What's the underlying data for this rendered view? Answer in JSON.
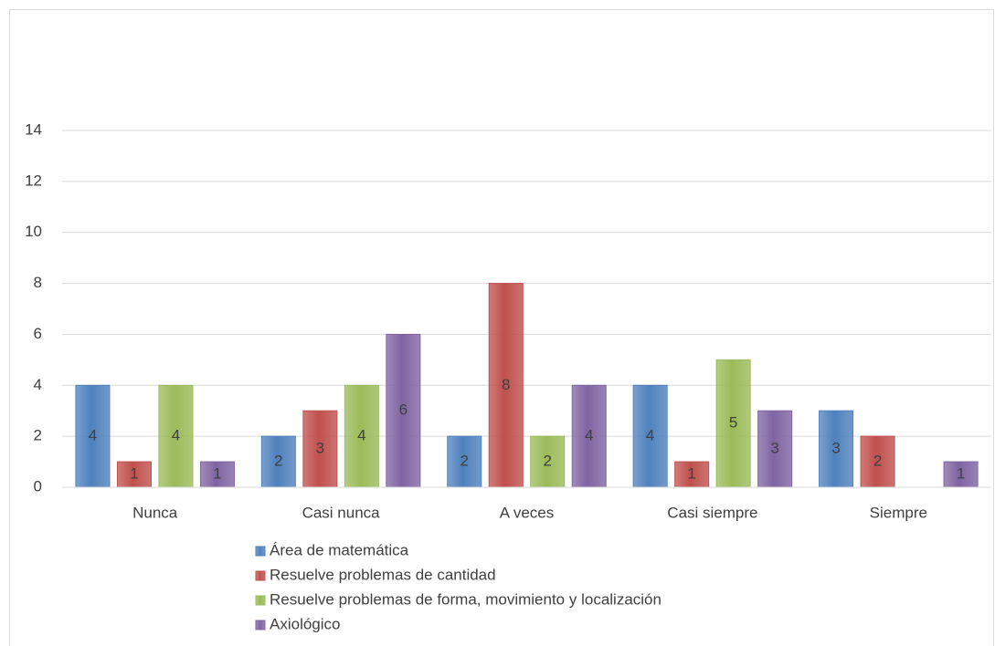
{
  "chart_data": {
    "type": "bar",
    "categories": [
      "Nunca",
      "Casi nunca",
      "A veces",
      "Casi siempre",
      "Siempre"
    ],
    "series": [
      {
        "name": "Área de matemática",
        "color": "#4f81bd",
        "values": [
          4,
          2,
          2,
          4,
          3
        ]
      },
      {
        "name": "Resuelve problemas de cantidad",
        "color": "#c0504d",
        "values": [
          1,
          3,
          8,
          1,
          2
        ]
      },
      {
        "name": "Resuelve problemas de forma, movimiento y localización",
        "color": "#9bbb59",
        "values": [
          4,
          4,
          2,
          5,
          null
        ]
      },
      {
        "name": "Axiológico",
        "color": "#8064a2",
        "values": [
          1,
          6,
          4,
          3,
          1
        ]
      }
    ],
    "ylim": [
      0,
      14
    ],
    "yticks": [
      0,
      2,
      4,
      6,
      8,
      10,
      12,
      14
    ],
    "grid": true,
    "legend": "bottom"
  }
}
